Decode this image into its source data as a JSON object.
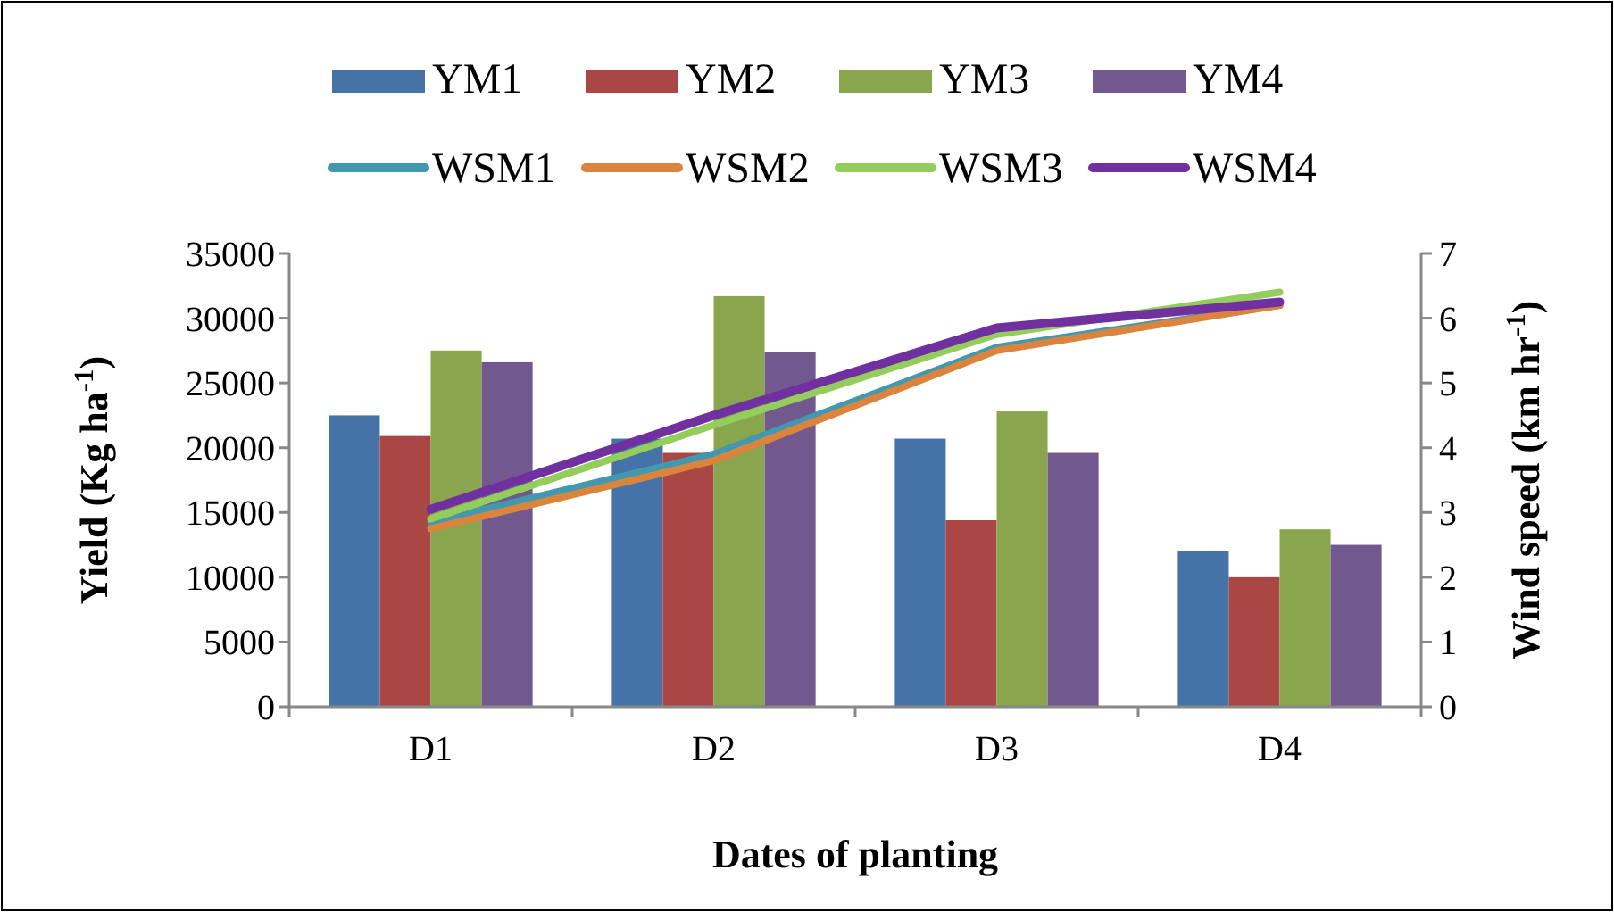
{
  "chart_data": {
    "type": "bar",
    "xlabel": "Dates of planting",
    "ylabel": "Yield (Kg ha$^{-1}$)",
    "y2label": "Wind speed (km hr$^{-1}$)",
    "categories": [
      "D1",
      "D2",
      "D3",
      "D4"
    ],
    "series": [
      {
        "name": "YM1",
        "color": "#4572a7",
        "values": [
          22500,
          20700,
          20700,
          12000
        ]
      },
      {
        "name": "YM2",
        "color": "#aa4643",
        "values": [
          20900,
          19600,
          14400,
          10000
        ]
      },
      {
        "name": "YM3",
        "color": "#89a54e",
        "values": [
          27500,
          31700,
          22800,
          13700
        ]
      },
      {
        "name": "YM4",
        "color": "#71588f",
        "values": [
          26600,
          27400,
          19600,
          12500
        ]
      },
      {
        "name": "WSM1",
        "type": "line",
        "axis": "y2",
        "color": "#4198af",
        "values": [
          2.85,
          3.9,
          5.55,
          6.2
        ]
      },
      {
        "name": "WSM2",
        "type": "line",
        "axis": "y2",
        "color": "#db843d",
        "values": [
          2.75,
          3.8,
          5.5,
          6.2
        ]
      },
      {
        "name": "WSM3",
        "type": "line",
        "axis": "y2",
        "color": "#93cd5b",
        "values": [
          2.9,
          4.35,
          5.75,
          6.4
        ]
      },
      {
        "name": "WSM4",
        "type": "line",
        "axis": "y2",
        "color": "#7030a0",
        "values": [
          3.05,
          4.5,
          5.85,
          6.25
        ]
      }
    ],
    "ylim": [
      0,
      35000
    ],
    "yticks": [
      0,
      5000,
      10000,
      15000,
      20000,
      25000,
      30000,
      35000
    ],
    "y2lim": [
      0,
      7
    ],
    "y2ticks": [
      0,
      1,
      2,
      3,
      4,
      5,
      6,
      7
    ],
    "legend": "top",
    "grid": false
  }
}
